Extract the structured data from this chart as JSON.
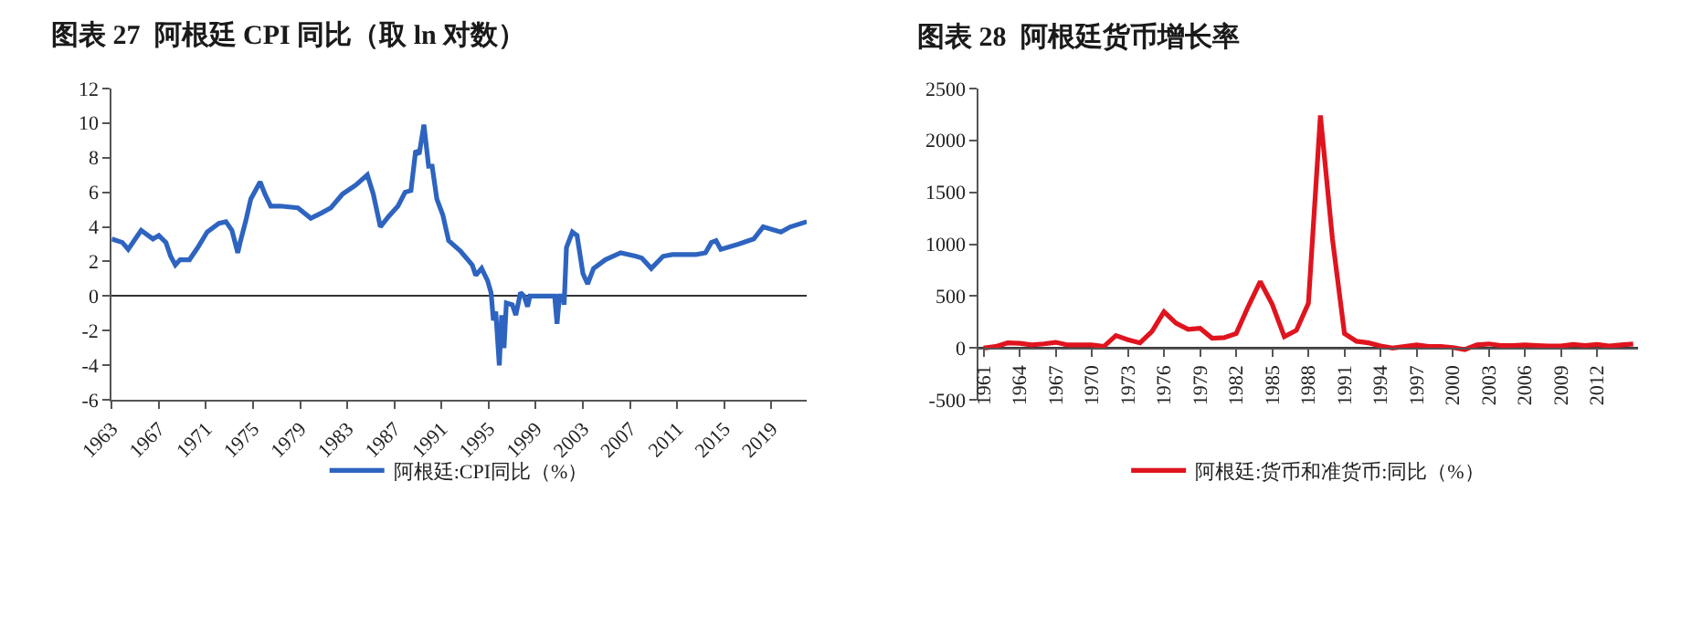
{
  "chart_data": [
    {
      "type": "line",
      "title": "图表 27  阿根廷 CPI 同比（取 ln 对数）",
      "legend": "bottom",
      "x": [
        1963.0,
        1963.9,
        1964.4,
        1965.2,
        1965.5,
        1966.5,
        1967.0,
        1967.6,
        1968.0,
        1968.4,
        1968.8,
        1969.6,
        1970.3,
        1971.1,
        1972.1,
        1972.7,
        1973.2,
        1973.7,
        1973.9,
        1974.4,
        1974.8,
        1975.6,
        1976.0,
        1976.5,
        1977.3,
        1978.8,
        1979.9,
        1980.8,
        1981.6,
        1982.6,
        1983.7,
        1984.7,
        1985.2,
        1985.8,
        1986.5,
        1987.3,
        1987.9,
        1988.4,
        1988.8,
        1989.1,
        1989.5,
        1989.9,
        1990.2,
        1990.6,
        1991.1,
        1991.6,
        1992.6,
        1993.6,
        1993.9,
        1994.4,
        1994.9,
        1995.2,
        1995.4,
        1995.6,
        1995.9,
        1996.1,
        1996.3,
        1996.5,
        1997.0,
        1997.3,
        1997.7,
        1998.0,
        1998.3,
        1998.5,
        2000.6,
        2000.8,
        2001.0,
        2001.3,
        2001.4,
        2001.6,
        2002.1,
        2002.5,
        2003.0,
        2003.4,
        2003.9,
        2004.9,
        2006.2,
        2007.5,
        2008.0,
        2008.8,
        2009.8,
        2010.6,
        2012.6,
        2013.4,
        2013.9,
        2014.3,
        2014.7,
        2016.2,
        2017.5,
        2018.3,
        2019.8,
        2020.6,
        2022.0
      ],
      "series": [
        {
          "name": "阿根廷:CPI同比（%）",
          "color": "#2e64c0",
          "values": [
            3.3,
            3.1,
            2.7,
            3.5,
            3.8,
            3.3,
            3.5,
            3.1,
            2.3,
            1.8,
            2.1,
            2.1,
            2.8,
            3.7,
            4.2,
            4.3,
            3.8,
            2.5,
            3.1,
            4.4,
            5.6,
            6.6,
            5.9,
            5.2,
            5.2,
            5.1,
            4.5,
            4.8,
            5.1,
            5.9,
            6.4,
            7.0,
            5.9,
            4.0,
            4.6,
            5.2,
            6.0,
            6.1,
            8.4,
            8.2,
            9.9,
            7.5,
            7.5,
            5.6,
            4.7,
            3.2,
            2.6,
            1.8,
            1.2,
            1.6,
            0.9,
            0.2,
            -1.4,
            -0.9,
            -4.0,
            -1.1,
            -3.0,
            -0.4,
            -0.5,
            -1.1,
            0.2,
            0,
            -0.6,
            0,
            0,
            -1.6,
            0,
            0,
            -0.5,
            2.8,
            3.7,
            3.5,
            1.3,
            0.7,
            1.6,
            2.1,
            2.5,
            2.3,
            2.2,
            1.6,
            2.3,
            2.4,
            2.4,
            2.5,
            3.1,
            3.2,
            2.7,
            3.0,
            3.3,
            4.0,
            3.7,
            4.0,
            4.3
          ]
        }
      ],
      "xlim": [
        1963,
        2022
      ],
      "xticks": [
        1963,
        1967,
        1971,
        1975,
        1979,
        1983,
        1987,
        1991,
        1995,
        1999,
        2003,
        2007,
        2011,
        2015,
        2019
      ],
      "ylim": [
        -6,
        12
      ],
      "yticks": [
        -6,
        -4,
        -2,
        0,
        2,
        4,
        6,
        8,
        10,
        12
      ]
    },
    {
      "type": "line",
      "title": "图表 28  阿根廷货币增长率",
      "legend": "bottom",
      "x": [
        1961,
        1962,
        1963,
        1964,
        1965,
        1966,
        1967,
        1968,
        1969,
        1970,
        1971,
        1972,
        1973,
        1974,
        1975,
        1976,
        1977,
        1978,
        1979,
        1980,
        1981,
        1982,
        1983,
        1984,
        1985,
        1986,
        1987,
        1988,
        1989,
        1990,
        1991,
        1992,
        1993,
        1994,
        1995,
        1996,
        1997,
        1998,
        1999,
        2000,
        2001,
        2002,
        2003,
        2004,
        2005,
        2006,
        2007,
        2008,
        2009,
        2010,
        2011,
        2012,
        2013,
        2014,
        2015
      ],
      "series": [
        {
          "name": "阿根廷:货币和准货币:同比（%）",
          "color": "#e0141e",
          "values": [
            0,
            15,
            50,
            45,
            30,
            40,
            55,
            30,
            30,
            30,
            15,
            120,
            80,
            50,
            160,
            350,
            240,
            180,
            190,
            95,
            100,
            140,
            400,
            640,
            420,
            110,
            170,
            430,
            2240,
            1050,
            140,
            65,
            50,
            20,
            0,
            15,
            30,
            15,
            15,
            5,
            -15,
            30,
            40,
            25,
            25,
            30,
            25,
            20,
            20,
            35,
            25,
            35,
            20,
            30,
            40
          ]
        }
      ],
      "xlim": [
        1960.6,
        2015.4
      ],
      "xticks": [
        1961,
        1964,
        1967,
        1970,
        1973,
        1976,
        1979,
        1982,
        1985,
        1988,
        1991,
        1994,
        1997,
        2000,
        2003,
        2006,
        2009,
        2012
      ],
      "ylim": [
        -500,
        2500
      ],
      "yticks": [
        -500,
        0,
        500,
        1000,
        1500,
        2000,
        2500
      ]
    }
  ]
}
